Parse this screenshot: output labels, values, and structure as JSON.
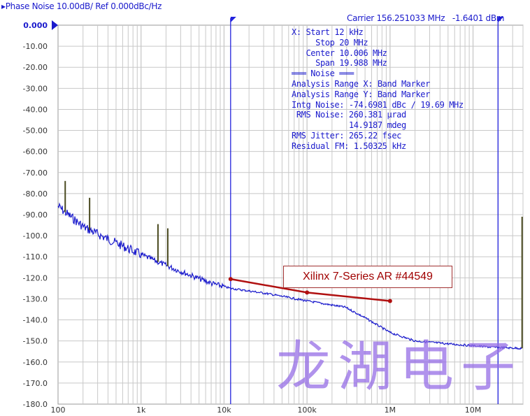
{
  "header": {
    "title": "▸Phase Noise 10.00dB/ Ref 0.000dBc/Hz",
    "carrier": "Carrier 156.251033 MHz",
    "carrier_power": "-1.6401 dBm"
  },
  "info_lines": [
    "X: Start 12 kHz",
    "     Stop 20 MHz",
    "   Center 10.006 MHz",
    "     Span 19.988 MHz",
    "═══ Noise ═══",
    "Analysis Range X: Band Marker",
    "Analysis Range Y: Band Marker",
    "Intg Noise: -74.6981 dBc / 19.69 MHz",
    " RMS Noise: 260.381 µrad",
    "            14.9187 mdeg",
    "RMS Jitter: 265.22 fsec",
    "Residual FM: 1.50325 kHz"
  ],
  "annotation": "Xilinx 7-Series AR #44549",
  "watermark": "龙湖电子",
  "chart_data": {
    "type": "line",
    "xscale": "log",
    "xlim": [
      100,
      40000000
    ],
    "ylim": [
      -180,
      0
    ],
    "grid": true,
    "y_ticks": [
      "0.000",
      "-10.00",
      "-20.00",
      "-30.00",
      "-40.00",
      "-50.00",
      "-60.00",
      "-70.00",
      "-80.00",
      "-90.00",
      "-100.0",
      "-110.0",
      "-120.0",
      "-130.0",
      "-140.0",
      "-150.0",
      "-160.0",
      "-170.0",
      "-180.0"
    ],
    "x_ticks": [
      {
        "v": 100,
        "label": "100"
      },
      {
        "v": 1000,
        "label": "1k"
      },
      {
        "v": 10000,
        "label": "10k"
      },
      {
        "v": 100000,
        "label": "100k"
      },
      {
        "v": 1000000,
        "label": "1M"
      },
      {
        "v": 10000000,
        "label": "10M"
      }
    ],
    "band_markers": [
      12000,
      20000000
    ],
    "colors": {
      "trace": "#1a1acc",
      "spur": "#4a4a20",
      "reference": "#b01010",
      "marker": "#2222dd",
      "grid": "#c8c8c8"
    },
    "trace": [
      [
        100,
        -86
      ],
      [
        127,
        -89.4
      ],
      [
        206,
        -96
      ],
      [
        370,
        -101
      ],
      [
        1000,
        -109
      ],
      [
        2600,
        -116
      ],
      [
        7000,
        -122.6
      ],
      [
        12000,
        -125
      ],
      [
        33000,
        -127.5
      ],
      [
        100000,
        -131
      ],
      [
        290000,
        -134
      ],
      [
        500000,
        -139
      ],
      [
        1000000,
        -146
      ],
      [
        2000000,
        -150
      ],
      [
        5500000,
        -151.5
      ],
      [
        17000000,
        -153
      ],
      [
        40000000,
        -153.5
      ]
    ],
    "spurs": [
      [
        122,
        -74
      ],
      [
        240,
        -82
      ],
      [
        1600,
        -94.5
      ],
      [
        2100,
        -96.5
      ],
      [
        39000000,
        -91
      ]
    ],
    "reference_line": [
      [
        12000,
        -120.6
      ],
      [
        100000,
        -127
      ],
      [
        1000000,
        -131
      ]
    ]
  }
}
